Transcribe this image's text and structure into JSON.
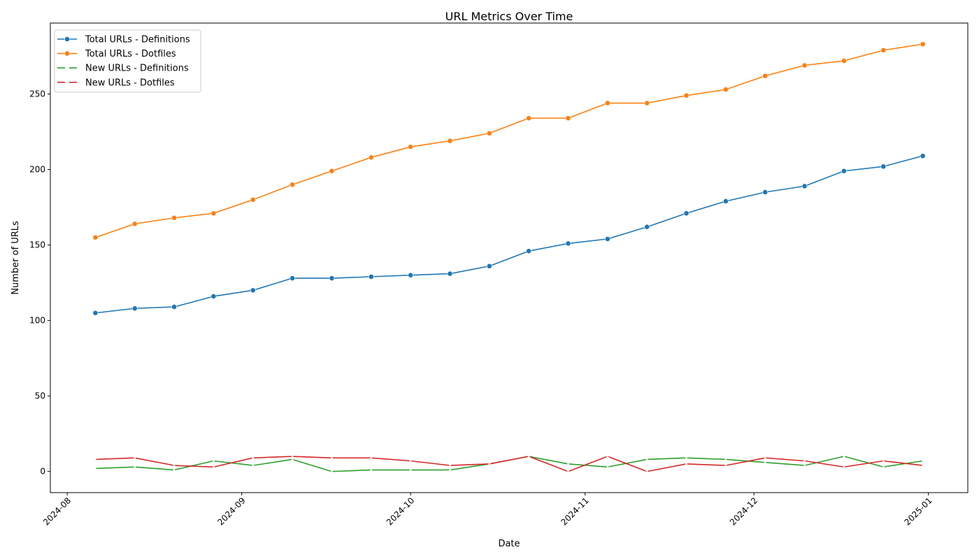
{
  "chart_data": {
    "type": "line",
    "title": "URL Metrics Over Time",
    "xlabel": "Date",
    "ylabel": "Number of URLs",
    "x_type": "date",
    "x_range": [
      "2024-07-29",
      "2025-01-08"
    ],
    "ylim": [
      -14,
      297
    ],
    "x_ticks": [
      "2024-08-01",
      "2024-09-01",
      "2024-10-01",
      "2024-11-01",
      "2024-12-01",
      "2025-01-01"
    ],
    "x_tick_labels": [
      "2024-08",
      "2024-09",
      "2024-10",
      "2024-11",
      "2024-12",
      "2025-01"
    ],
    "y_ticks": [
      0,
      50,
      100,
      150,
      200,
      250
    ],
    "y_tick_labels": [
      "0",
      "50",
      "100",
      "150",
      "200",
      "250"
    ],
    "grid": false,
    "legend_position": "top-left",
    "x": [
      "2024-08-06",
      "2024-08-13",
      "2024-08-20",
      "2024-08-27",
      "2024-09-03",
      "2024-09-10",
      "2024-09-17",
      "2024-09-24",
      "2024-10-01",
      "2024-10-08",
      "2024-10-15",
      "2024-10-22",
      "2024-10-29",
      "2024-11-05",
      "2024-11-12",
      "2024-11-19",
      "2024-11-26",
      "2024-12-03",
      "2024-12-10",
      "2024-12-17",
      "2024-12-24",
      "2024-12-31"
    ],
    "series": [
      {
        "name": "Total URLs - Definitions",
        "color": "#1f77b4",
        "marker": "circle",
        "values": [
          105,
          108,
          109,
          116,
          120,
          128,
          128,
          129,
          130,
          131,
          136,
          146,
          151,
          154,
          162,
          171,
          179,
          185,
          189,
          199,
          202,
          209
        ]
      },
      {
        "name": "Total URLs - Dotfiles",
        "color": "#ff7f0e",
        "marker": "circle",
        "values": [
          155,
          164,
          168,
          171,
          180,
          190,
          199,
          208,
          215,
          219,
          224,
          234,
          234,
          244,
          244,
          249,
          253,
          262,
          269,
          272,
          279,
          283
        ]
      },
      {
        "name": "New URLs - Definitions",
        "color": "#2ca02c",
        "marker": "x",
        "values": [
          2,
          3,
          1,
          7,
          4,
          8,
          0,
          1,
          1,
          1,
          5,
          10,
          5,
          3,
          8,
          9,
          8,
          6,
          4,
          10,
          3,
          7
        ]
      },
      {
        "name": "New URLs - Dotfiles",
        "color": "#d62728",
        "marker": "x",
        "values": [
          8,
          9,
          4,
          3,
          9,
          10,
          9,
          9,
          7,
          4,
          5,
          10,
          0,
          10,
          0,
          5,
          4,
          9,
          7,
          3,
          7,
          4
        ]
      }
    ]
  }
}
